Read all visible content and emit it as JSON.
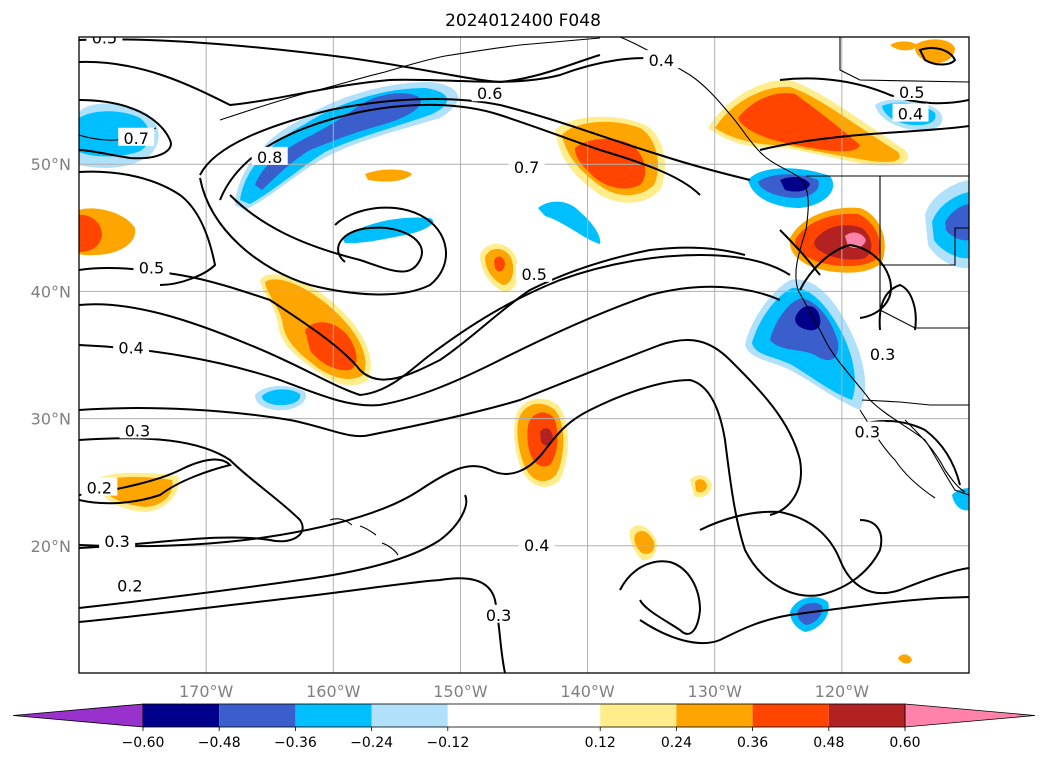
{
  "chart_data": {
    "type": "map",
    "title": "2024012400 F048",
    "projection": "lat-lon",
    "lon_range": [
      -180,
      -110
    ],
    "lat_range": [
      10,
      60
    ],
    "lon_ticks": [
      {
        "lon": -170,
        "label": "170°W"
      },
      {
        "lon": -160,
        "label": "160°W"
      },
      {
        "lon": -150,
        "label": "150°W"
      },
      {
        "lon": -140,
        "label": "140°W"
      },
      {
        "lon": -130,
        "label": "130°W"
      },
      {
        "lon": -120,
        "label": "120°W"
      }
    ],
    "lat_ticks": [
      {
        "lat": 20,
        "label": "20°N"
      },
      {
        "lat": 30,
        "label": "30°N"
      },
      {
        "lat": 40,
        "label": "40°N"
      },
      {
        "lat": 50,
        "label": "50°N"
      }
    ],
    "grid": true,
    "colorbar": {
      "orientation": "horizontal",
      "extend": "both",
      "colors": [
        "#9932cc",
        "#00008b",
        "#3a5fcd",
        "#00bfff",
        "#b0e0fa",
        "#ffffff",
        "#ffec8b",
        "#ffa500",
        "#ff4500",
        "#b22222",
        "#ff82ab"
      ],
      "levels": [
        -0.72,
        -0.6,
        -0.48,
        -0.36,
        -0.24,
        -0.12,
        0.12,
        0.24,
        0.36,
        0.48,
        0.6,
        0.72
      ],
      "tick_labels": [
        "−0.60",
        "−0.48",
        "−0.36",
        "−0.24",
        "−0.12",
        "0.12",
        "0.24",
        "0.36",
        "0.48",
        "0.60"
      ]
    },
    "contour_labels": [
      {
        "text": "0.5",
        "lon": -178,
        "lat": 59.9
      },
      {
        "text": "0.4",
        "lon": -134.2,
        "lat": 58.1
      },
      {
        "text": "0.6",
        "lon": -147.7,
        "lat": 55.5
      },
      {
        "text": "0.7",
        "lon": -175.5,
        "lat": 52.0
      },
      {
        "text": "0.8",
        "lon": -165.0,
        "lat": 50.5
      },
      {
        "text": "0.7",
        "lon": -144.8,
        "lat": 49.7
      },
      {
        "text": "0.5",
        "lon": -144.2,
        "lat": 41.3
      },
      {
        "text": "0.5",
        "lon": -174.3,
        "lat": 41.8
      },
      {
        "text": "0.4",
        "lon": -175.9,
        "lat": 35.5
      },
      {
        "text": "0.3",
        "lon": -175.4,
        "lat": 29.0
      },
      {
        "text": "0.2",
        "lon": -178.4,
        "lat": 24.5
      },
      {
        "text": "0.3",
        "lon": -177.0,
        "lat": 20.3
      },
      {
        "text": "0.2",
        "lon": -176.0,
        "lat": 16.8
      },
      {
        "text": "0.4",
        "lon": -144.0,
        "lat": 20.0
      },
      {
        "text": "0.3",
        "lon": -147.0,
        "lat": 14.5
      },
      {
        "text": "0.3",
        "lon": -116.8,
        "lat": 35.0
      },
      {
        "text": "0.3",
        "lon": -118.0,
        "lat": 28.9
      },
      {
        "text": "0.5",
        "lon": -114.5,
        "lat": 55.6
      },
      {
        "text": "0.4",
        "lon": -114.6,
        "lat": 53.9
      }
    ],
    "colorbar_label": ""
  }
}
